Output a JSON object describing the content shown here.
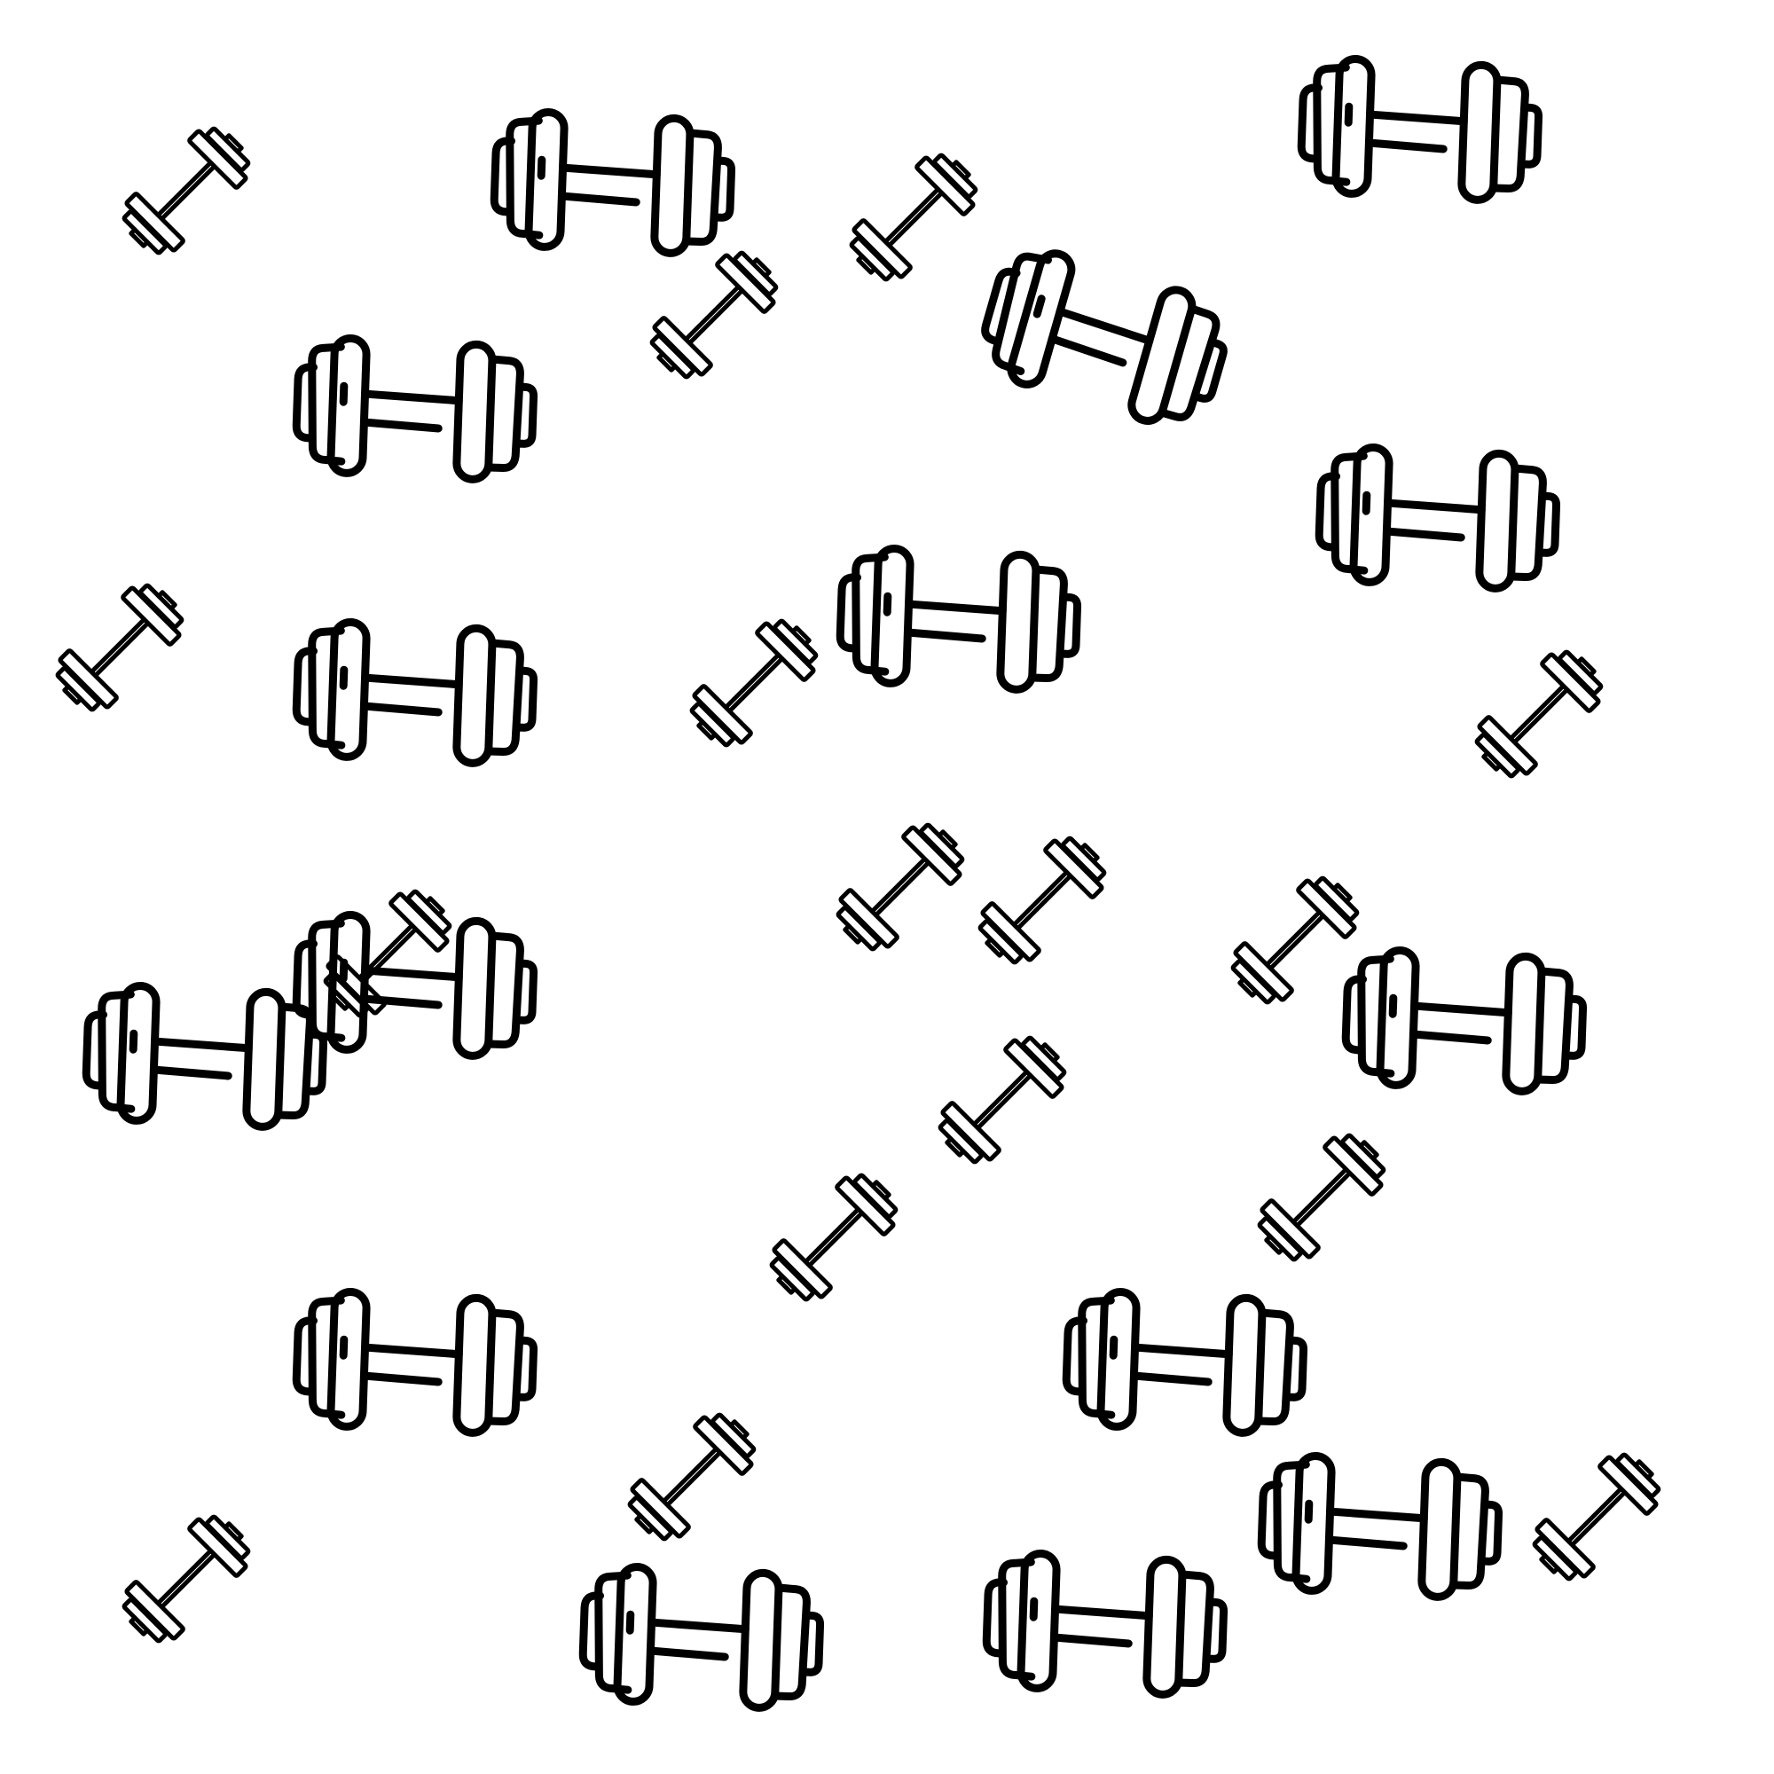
{
  "colors": {
    "background": "#ffffff",
    "stroke": "#000000"
  },
  "icon_names": {
    "large": "dumbbell-icon",
    "small": "barbell-icon"
  }
}
